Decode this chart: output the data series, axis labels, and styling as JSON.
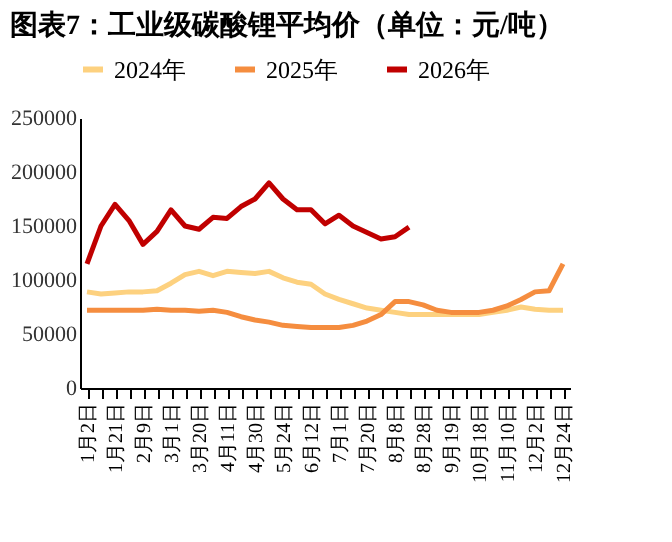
{
  "chart_data": {
    "type": "line",
    "title": "图表7：工业级碳酸锂平均价（单位：元/吨）",
    "categories": [
      "1月2日",
      null,
      "1月21日",
      null,
      "2月9日",
      null,
      "3月1日",
      null,
      "3月20日",
      null,
      "4月11日",
      null,
      "4月30日",
      null,
      "5月24日",
      null,
      "6月12日",
      null,
      "7月1日",
      null,
      "7月20日",
      null,
      "8月8日",
      null,
      "8月28日",
      null,
      "9月19日",
      null,
      "10月18日",
      null,
      "11月10日",
      null,
      "12月2日",
      null,
      "12月24日"
    ],
    "series": [
      {
        "name": "2024年",
        "color": "#fdd17f",
        "values": [
          89000,
          87000,
          88000,
          89000,
          89000,
          90000,
          97000,
          105000,
          108000,
          104000,
          108000,
          107000,
          106000,
          108000,
          102000,
          98000,
          96000,
          87000,
          82000,
          78000,
          74000,
          72000,
          70000,
          68000,
          68000,
          68000,
          68000,
          68000,
          68000,
          70000,
          72000,
          75000,
          73000,
          72000,
          72000
        ]
      },
      {
        "name": "2025年",
        "color": "#f58d3f",
        "values": [
          72000,
          72000,
          72000,
          72000,
          72000,
          73000,
          72000,
          72000,
          71000,
          72000,
          70000,
          66000,
          63000,
          61000,
          58000,
          57000,
          56000,
          56000,
          56000,
          58000,
          62000,
          68000,
          80000,
          80000,
          77000,
          72000,
          70000,
          70000,
          70000,
          72000,
          76000,
          82000,
          89000,
          90000,
          115000
        ]
      },
      {
        "name": "2026年",
        "color": "#c00000",
        "values": [
          115000,
          150000,
          170000,
          155000,
          133000,
          145000,
          165000,
          150000,
          147000,
          158000,
          157000,
          168000,
          175000,
          190000,
          175000,
          165000,
          165000,
          152000,
          160000,
          150000,
          144000,
          138000,
          140000,
          149000,
          null,
          null,
          null,
          null,
          null,
          null,
          null,
          null,
          null,
          null,
          null
        ]
      }
    ],
    "ylim": [
      0,
      250000
    ],
    "yticks": [
      0,
      50000,
      100000,
      150000,
      200000,
      250000
    ],
    "legend": "top",
    "grid": false,
    "marker": "none",
    "line_style": "solid"
  }
}
